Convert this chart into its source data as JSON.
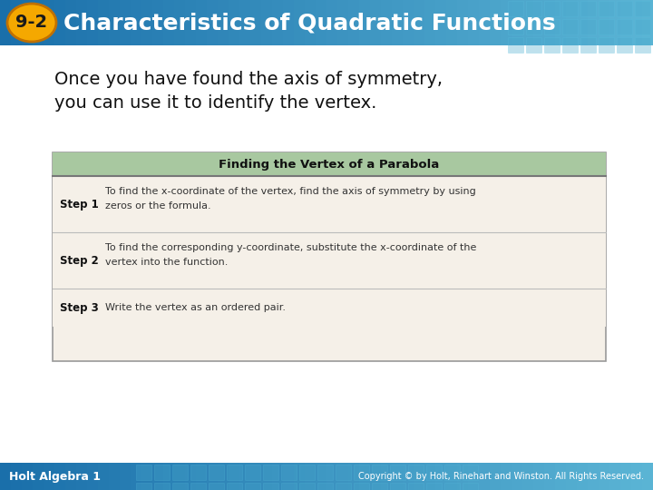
{
  "title_number": "9-2",
  "title_text": "Characteristics of Quadratic Functions",
  "header_bg_color_left": "#1A6FAA",
  "header_bg_color_right": "#5BB5D5",
  "header_text_color": "#FFFFFF",
  "badge_bg_color": "#F5A800",
  "badge_border_color": "#C07000",
  "badge_text_color": "#1A1A1A",
  "body_bg_color": "#FFFFFF",
  "footer_bg_color_left": "#1A6FAA",
  "footer_bg_color_right": "#5BB5D5",
  "footer_left": "Holt Algebra 1",
  "footer_right": "Copyright © by Holt, Rinehart and Winston. All Rights Reserved.",
  "footer_text_color": "#FFFFFF",
  "intro_text_line1": "Once you have found the axis of symmetry,",
  "intro_text_line2": "you can use it to identify the vertex.",
  "table_title": "Finding the Vertex of a Parabola",
  "table_header_bg": "#A8C8A0",
  "table_body_bg": "#F5F0E8",
  "table_border_color": "#999999",
  "table_divider_color": "#BBBBBB",
  "step1_label": "Step 1",
  "step1_line1": "To find the x-coordinate of the vertex, find the axis of symmetry by using",
  "step1_line2": "zeros or the formula.",
  "step2_label": "Step 2",
  "step2_line1": "To find the corresponding y-coordinate, substitute the x-coordinate of the",
  "step2_line2": "vertex into the function.",
  "step3_label": "Step 3",
  "step3_text": "Write the vertex as an ordered pair."
}
